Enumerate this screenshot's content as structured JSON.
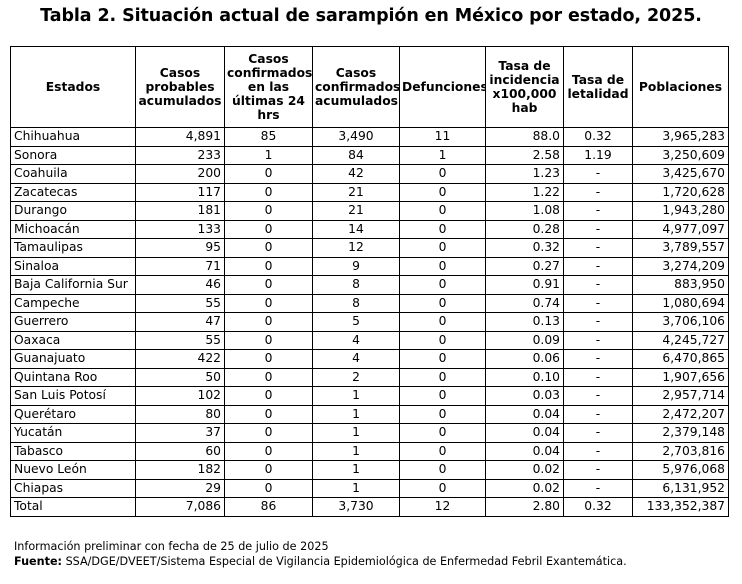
{
  "title": "Tabla 2. Situación actual de sarampión en México por estado, 2025.",
  "headers": [
    "Estados",
    "Casos probables acumulados",
    "Casos confirmados en las últimas 24 hrs",
    "Casos confirmados acumulados",
    "Defunciones",
    "Tasa de incidencia x100,000 hab",
    "Tasa de letalidad",
    "Poblaciones"
  ],
  "rows": [
    [
      "Chihuahua",
      "4,891",
      "85",
      "3,490",
      "11",
      "88.0",
      "0.32",
      "3,965,283"
    ],
    [
      "Sonora",
      "233",
      "1",
      "84",
      "1",
      "2.58",
      "1.19",
      "3,250,609"
    ],
    [
      "Coahuila",
      "200",
      "0",
      "42",
      "0",
      "1.23",
      "-",
      "3,425,670"
    ],
    [
      "Zacatecas",
      "117",
      "0",
      "21",
      "0",
      "1.22",
      "-",
      "1,720,628"
    ],
    [
      "Durango",
      "181",
      "0",
      "21",
      "0",
      "1.08",
      "-",
      "1,943,280"
    ],
    [
      "Michoacán",
      "133",
      "0",
      "14",
      "0",
      "0.28",
      "-",
      "4,977,097"
    ],
    [
      "Tamaulipas",
      "95",
      "0",
      "12",
      "0",
      "0.32",
      "-",
      "3,789,557"
    ],
    [
      "Sinaloa",
      "71",
      "0",
      "9",
      "0",
      "0.27",
      "-",
      "3,274,209"
    ],
    [
      "Baja California Sur",
      "46",
      "0",
      "8",
      "0",
      "0.91",
      "-",
      "883,950"
    ],
    [
      "Campeche",
      "55",
      "0",
      "8",
      "0",
      "0.74",
      "-",
      "1,080,694"
    ],
    [
      "Guerrero",
      "47",
      "0",
      "5",
      "0",
      "0.13",
      "-",
      "3,706,106"
    ],
    [
      "Oaxaca",
      "55",
      "0",
      "4",
      "0",
      "0.09",
      "-",
      "4,245,727"
    ],
    [
      "Guanajuato",
      "422",
      "0",
      "4",
      "0",
      "0.06",
      "-",
      "6,470,865"
    ],
    [
      "Quintana Roo",
      "50",
      "0",
      "2",
      "0",
      "0.10",
      "-",
      "1,907,656"
    ],
    [
      "San Luis Potosí",
      "102",
      "0",
      "1",
      "0",
      "0.03",
      "-",
      "2,957,714"
    ],
    [
      "Querétaro",
      "80",
      "0",
      "1",
      "0",
      "0.04",
      "-",
      "2,472,207"
    ],
    [
      "Yucatán",
      "37",
      "0",
      "1",
      "0",
      "0.04",
      "-",
      "2,379,148"
    ],
    [
      "Tabasco",
      "60",
      "0",
      "1",
      "0",
      "0.04",
      "-",
      "2,703,816"
    ],
    [
      "Nuevo León",
      "182",
      "0",
      "1",
      "0",
      "0.02",
      "-",
      "5,976,068"
    ],
    [
      "Chiapas",
      "29",
      "0",
      "1",
      "0",
      "0.02",
      "-",
      "6,131,952"
    ]
  ],
  "total": [
    "Total",
    "7,086",
    "86",
    "3,730",
    "12",
    "2.80",
    "0.32",
    "133,352,387"
  ],
  "notes": {
    "preliminary": "Información preliminar con fecha de 25 de julio de 2025",
    "source_label": "Fuente:",
    "source_text": " SSA/DGE/DVEET/Sistema Especial de Vigilancia Epidemiológica de Enfermedad Febril Exantemática."
  }
}
